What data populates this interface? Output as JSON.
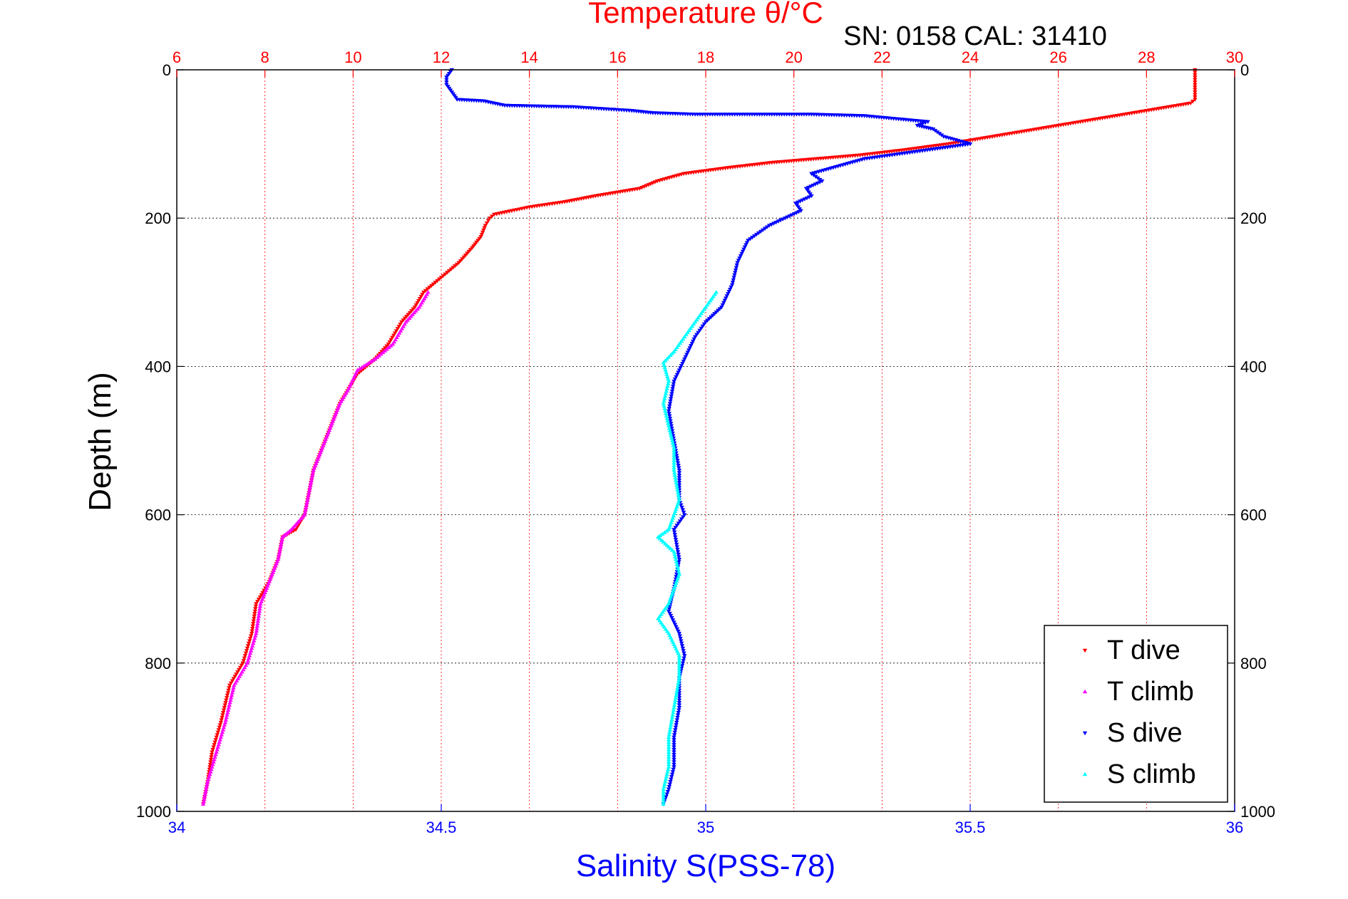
{
  "chart_data": {
    "type": "scatter",
    "title": "Temperature θ/°C",
    "subtitle": "SN: 0158  CAL: 31410",
    "ylabel": "Depth (m)",
    "xlabel": "Salinity S(PSS-78)",
    "top_axis": {
      "label": "Temperature θ/°C",
      "range": [
        6,
        30
      ],
      "ticks": [
        6,
        8,
        10,
        12,
        14,
        16,
        18,
        20,
        22,
        24,
        26,
        28,
        30
      ],
      "color": "#ff0000"
    },
    "bottom_axis": {
      "label": "Salinity S(PSS-78)",
      "range": [
        34,
        36
      ],
      "ticks": [
        34,
        34.5,
        35,
        35.5,
        36
      ],
      "tick_labels": [
        "34",
        "34.5",
        "35",
        "35.5",
        "36"
      ],
      "color": "#0000ff"
    },
    "depth_axis": {
      "range": [
        0,
        1000
      ],
      "reversed": true,
      "ticks": [
        0,
        200,
        400,
        600,
        800,
        1000
      ]
    },
    "grid": true,
    "legend": {
      "position": "bottom-right",
      "entries": [
        "T dive",
        "T climb",
        "S dive",
        "S climb"
      ]
    },
    "series": [
      {
        "name": "T dive",
        "axis": "temperature",
        "marker": "triangle-down",
        "color": "#ff0000",
        "points": [
          [
            29.1,
            0
          ],
          [
            29.1,
            20
          ],
          [
            29.1,
            40
          ],
          [
            29.0,
            45
          ],
          [
            28.5,
            50
          ],
          [
            27.5,
            60
          ],
          [
            26.5,
            70
          ],
          [
            25.5,
            80
          ],
          [
            24.5,
            90
          ],
          [
            23.5,
            100
          ],
          [
            22.5,
            108
          ],
          [
            21.5,
            115
          ],
          [
            20.5,
            120
          ],
          [
            19.5,
            125
          ],
          [
            18.5,
            132
          ],
          [
            17.5,
            140
          ],
          [
            16.9,
            150
          ],
          [
            16.5,
            160
          ],
          [
            15.5,
            170
          ],
          [
            14.8,
            178
          ],
          [
            14.0,
            185
          ],
          [
            13.2,
            195
          ],
          [
            13.1,
            200
          ],
          [
            13.0,
            210
          ],
          [
            12.9,
            225
          ],
          [
            12.7,
            240
          ],
          [
            12.4,
            260
          ],
          [
            12.0,
            280
          ],
          [
            11.6,
            300
          ],
          [
            11.4,
            320
          ],
          [
            11.1,
            340
          ],
          [
            10.8,
            370
          ],
          [
            10.5,
            390
          ],
          [
            10.1,
            410
          ],
          [
            9.9,
            430
          ],
          [
            9.7,
            450
          ],
          [
            9.5,
            480
          ],
          [
            9.3,
            510
          ],
          [
            9.1,
            540
          ],
          [
            9.0,
            570
          ],
          [
            8.9,
            600
          ],
          [
            8.7,
            620
          ],
          [
            8.4,
            630
          ],
          [
            8.3,
            660
          ],
          [
            8.1,
            690
          ],
          [
            7.8,
            720
          ],
          [
            7.7,
            760
          ],
          [
            7.5,
            800
          ],
          [
            7.2,
            830
          ],
          [
            7.0,
            880
          ],
          [
            6.8,
            920
          ],
          [
            6.7,
            960
          ],
          [
            6.6,
            990
          ]
        ]
      },
      {
        "name": "T climb",
        "axis": "temperature",
        "marker": "triangle-up",
        "color": "#ff00ff",
        "points": [
          [
            11.7,
            300
          ],
          [
            11.5,
            320
          ],
          [
            11.2,
            340
          ],
          [
            10.9,
            370
          ],
          [
            10.5,
            390
          ],
          [
            10.1,
            405
          ],
          [
            9.9,
            430
          ],
          [
            9.7,
            450
          ],
          [
            9.5,
            480
          ],
          [
            9.3,
            510
          ],
          [
            9.1,
            540
          ],
          [
            9.0,
            570
          ],
          [
            8.9,
            600
          ],
          [
            8.6,
            620
          ],
          [
            8.4,
            630
          ],
          [
            8.3,
            660
          ],
          [
            8.1,
            690
          ],
          [
            7.9,
            720
          ],
          [
            7.8,
            760
          ],
          [
            7.6,
            800
          ],
          [
            7.3,
            830
          ],
          [
            7.1,
            880
          ],
          [
            6.9,
            920
          ],
          [
            6.7,
            960
          ],
          [
            6.6,
            990
          ]
        ]
      },
      {
        "name": "S dive",
        "axis": "salinity",
        "marker": "triangle-down",
        "color": "#0000ff",
        "points": [
          [
            34.52,
            0
          ],
          [
            34.51,
            10
          ],
          [
            34.51,
            20
          ],
          [
            34.52,
            30
          ],
          [
            34.53,
            40
          ],
          [
            34.58,
            42
          ],
          [
            34.62,
            48
          ],
          [
            34.75,
            50
          ],
          [
            34.86,
            55
          ],
          [
            34.9,
            58
          ],
          [
            34.98,
            60
          ],
          [
            35.2,
            60
          ],
          [
            35.3,
            62
          ],
          [
            35.42,
            70
          ],
          [
            35.4,
            75
          ],
          [
            35.43,
            80
          ],
          [
            35.45,
            90
          ],
          [
            35.5,
            100
          ],
          [
            35.4,
            110
          ],
          [
            35.3,
            120
          ],
          [
            35.25,
            130
          ],
          [
            35.2,
            140
          ],
          [
            35.22,
            150
          ],
          [
            35.19,
            160
          ],
          [
            35.2,
            170
          ],
          [
            35.17,
            180
          ],
          [
            35.18,
            190
          ],
          [
            35.15,
            200
          ],
          [
            35.12,
            210
          ],
          [
            35.08,
            230
          ],
          [
            35.06,
            260
          ],
          [
            35.05,
            290
          ],
          [
            35.03,
            320
          ],
          [
            35.0,
            340
          ],
          [
            34.98,
            360
          ],
          [
            34.96,
            390
          ],
          [
            34.94,
            420
          ],
          [
            34.93,
            460
          ],
          [
            34.94,
            500
          ],
          [
            34.95,
            540
          ],
          [
            34.95,
            580
          ],
          [
            34.96,
            600
          ],
          [
            34.94,
            620
          ],
          [
            34.95,
            660
          ],
          [
            34.94,
            700
          ],
          [
            34.93,
            730
          ],
          [
            34.95,
            760
          ],
          [
            34.96,
            790
          ],
          [
            34.95,
            820
          ],
          [
            34.95,
            860
          ],
          [
            34.94,
            900
          ],
          [
            34.94,
            940
          ],
          [
            34.93,
            970
          ],
          [
            34.92,
            990
          ]
        ]
      },
      {
        "name": "S climb",
        "axis": "salinity",
        "marker": "triangle-up",
        "color": "#00ffff",
        "points": [
          [
            35.02,
            300
          ],
          [
            35.0,
            320
          ],
          [
            34.98,
            340
          ],
          [
            34.96,
            360
          ],
          [
            34.94,
            380
          ],
          [
            34.92,
            395
          ],
          [
            34.93,
            420
          ],
          [
            34.92,
            450
          ],
          [
            34.93,
            480
          ],
          [
            34.94,
            510
          ],
          [
            34.94,
            540
          ],
          [
            34.95,
            580
          ],
          [
            34.93,
            620
          ],
          [
            34.91,
            630
          ],
          [
            34.94,
            650
          ],
          [
            34.95,
            680
          ],
          [
            34.93,
            720
          ],
          [
            34.91,
            740
          ],
          [
            34.93,
            760
          ],
          [
            34.95,
            790
          ],
          [
            34.95,
            820
          ],
          [
            34.94,
            860
          ],
          [
            34.93,
            900
          ],
          [
            34.93,
            940
          ],
          [
            34.92,
            970
          ],
          [
            34.92,
            990
          ]
        ]
      }
    ]
  }
}
